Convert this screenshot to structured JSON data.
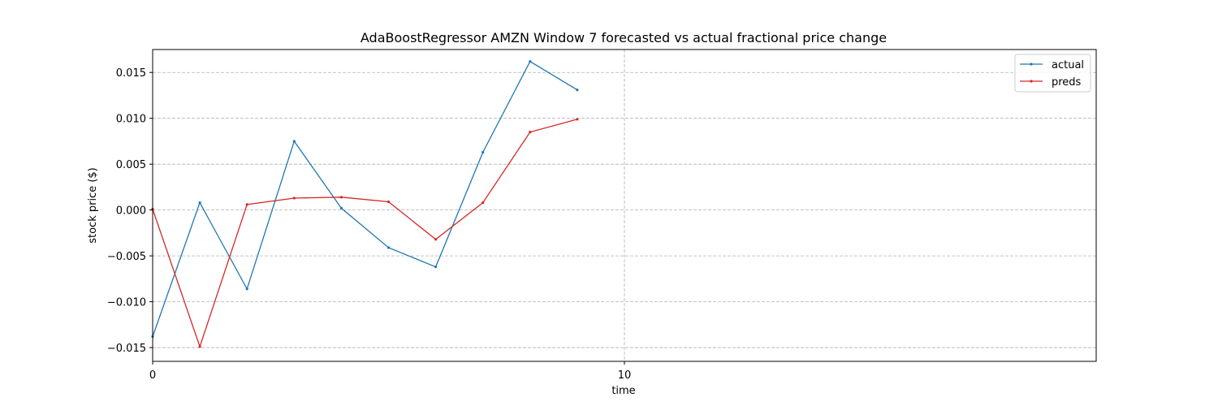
{
  "chart_data": {
    "type": "line",
    "title": "AdaBoostRegressor AMZN Window 7 forecasted vs actual fractional price change",
    "xlabel": "time",
    "ylabel": "stock price ($)",
    "xlim": [
      0,
      20
    ],
    "ylim": [
      -0.0165,
      0.0175
    ],
    "xticks": [
      0,
      10
    ],
    "xtick_labels": [
      "0",
      "10"
    ],
    "yticks": [
      -0.015,
      -0.01,
      -0.005,
      0.0,
      0.005,
      0.01,
      0.015
    ],
    "ytick_labels": [
      "−0.015",
      "−0.010",
      "−0.005",
      "0.000",
      "0.005",
      "0.010",
      "0.015"
    ],
    "grid": true,
    "legend_position": "top-right",
    "x": [
      0,
      1,
      2,
      3,
      4,
      5,
      6,
      7,
      8,
      9
    ],
    "series": [
      {
        "name": "actual",
        "color": "#1f77b4",
        "values": [
          -0.0138,
          0.0008,
          -0.0086,
          0.0075,
          0.0002,
          -0.0041,
          -0.0062,
          0.0063,
          0.0162,
          0.0131
        ]
      },
      {
        "name": "preds",
        "color": "#d62728",
        "values": [
          0.0001,
          -0.0149,
          0.0006,
          0.0013,
          0.0014,
          0.0009,
          -0.0032,
          0.0008,
          0.0085,
          0.0099
        ]
      }
    ]
  }
}
